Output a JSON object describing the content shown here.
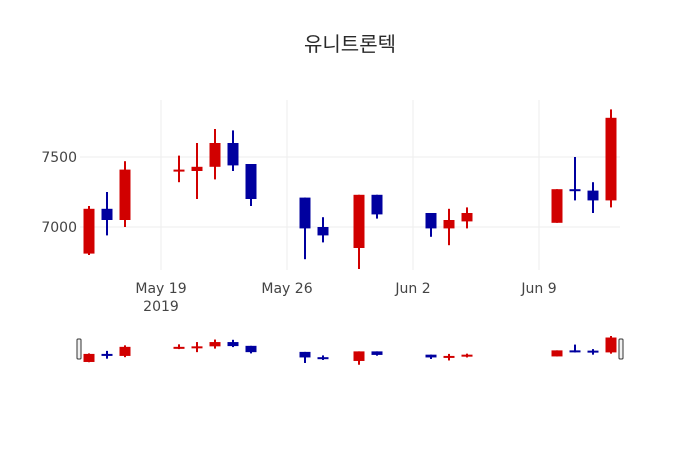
{
  "chart_data": {
    "type": "candlestick",
    "title": "유니트론텍",
    "xlabel": "",
    "ylabel": "",
    "x_tick_labels": [
      "May 19\n2019",
      "May 26",
      "Jun 2",
      "Jun 9"
    ],
    "x_ticks": [
      "2019-05-19",
      "2019-05-26",
      "2019-06-02",
      "2019-06-09"
    ],
    "y_ticks": [
      7000,
      7500
    ],
    "ylim": [
      6690,
      7880
    ],
    "xlim": [
      "2019-05-14",
      "2019-06-13"
    ],
    "increasing_color": "#d10000",
    "decreasing_color": "#00009f",
    "grid": true,
    "range_slider": true,
    "categories": [
      "2019-05-15",
      "2019-05-16",
      "2019-05-17",
      "2019-05-20",
      "2019-05-21",
      "2019-05-22",
      "2019-05-23",
      "2019-05-24",
      "2019-05-27",
      "2019-05-28",
      "2019-05-30",
      "2019-05-31",
      "2019-06-03",
      "2019-06-04",
      "2019-06-05",
      "2019-06-10",
      "2019-06-11",
      "2019-06-12",
      "2019-06-13"
    ],
    "series": [
      {
        "name": "open",
        "values": [
          6810,
          7130,
          7050,
          7400,
          7400,
          7430,
          7600,
          7450,
          7210,
          7000,
          6850,
          7230,
          7100,
          6990,
          7040,
          7030,
          7270,
          7260,
          7190
        ]
      },
      {
        "name": "high",
        "values": [
          7150,
          7250,
          7470,
          7510,
          7600,
          7700,
          7690,
          7450,
          7210,
          7070,
          7230,
          7230,
          7100,
          7130,
          7140,
          7270,
          7500,
          7320,
          7840
        ]
      },
      {
        "name": "low",
        "values": [
          6800,
          6940,
          7000,
          7320,
          7200,
          7340,
          7400,
          7150,
          6770,
          6890,
          6700,
          7060,
          6930,
          6870,
          6990,
          7030,
          7190,
          7100,
          7140
        ]
      },
      {
        "name": "close",
        "values": [
          7130,
          7050,
          7410,
          7410,
          7430,
          7600,
          7440,
          7200,
          6990,
          6940,
          7230,
          7090,
          6990,
          7050,
          7100,
          7270,
          7260,
          7190,
          7780
        ]
      }
    ]
  }
}
